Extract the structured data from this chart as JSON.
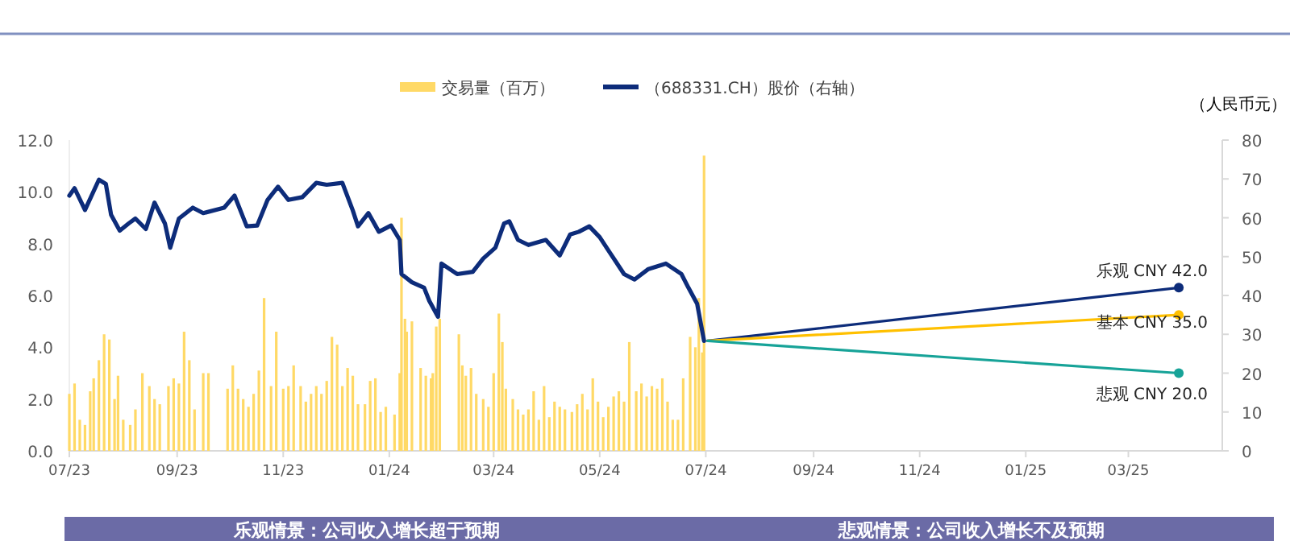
{
  "chart_data": {
    "type": "bar",
    "y2label": "（人民币元）",
    "legend": "top",
    "grid": false,
    "xlim": [
      "2023-07-01",
      "2025-04-24"
    ],
    "xticks": [
      {
        "value": "2023-07-01",
        "label": "07/23"
      },
      {
        "value": "2023-09-01",
        "label": "09/23"
      },
      {
        "value": "2023-11-01",
        "label": "11/23"
      },
      {
        "value": "2024-01-01",
        "label": "01/24"
      },
      {
        "value": "2024-03-01",
        "label": "03/24"
      },
      {
        "value": "2024-05-01",
        "label": "05/24"
      },
      {
        "value": "2024-07-01",
        "label": "07/24"
      },
      {
        "value": "2024-09-01",
        "label": "09/24"
      },
      {
        "value": "2024-11-01",
        "label": "11/24"
      },
      {
        "value": "2025-01-01",
        "label": "01/25"
      },
      {
        "value": "2025-03-01",
        "label": "03/25"
      }
    ],
    "ylim": [
      0,
      12
    ],
    "yticks": [
      {
        "value": 0,
        "label": "0.0"
      },
      {
        "value": 2,
        "label": "2.0"
      },
      {
        "value": 4,
        "label": "4.0"
      },
      {
        "value": 6,
        "label": "6.0"
      },
      {
        "value": 8,
        "label": "8.0"
      },
      {
        "value": 10,
        "label": "10.0"
      },
      {
        "value": 12,
        "label": "12.0"
      }
    ],
    "y2lim": [
      0,
      80
    ],
    "y2ticks": [
      0,
      10,
      20,
      30,
      40,
      50,
      60,
      70,
      80
    ],
    "annotations": [
      "乐观情景：公司收入增长超于预期",
      "悲观情景：公司收入增长不及预期"
    ],
    "series": [
      {
        "name": "交易量（百万）",
        "color": "#ffd966",
        "x": [
          "2023-07-01",
          "2023-07-04",
          "2023-07-07",
          "2023-07-10",
          "2023-07-13",
          "2023-07-15",
          "2023-07-18",
          "2023-07-21",
          "2023-07-24",
          "2023-07-27",
          "2023-07-29",
          "2023-08-01",
          "2023-08-05",
          "2023-08-08",
          "2023-08-12",
          "2023-08-16",
          "2023-08-19",
          "2023-08-22",
          "2023-08-27",
          "2023-08-30",
          "2023-09-02",
          "2023-09-05",
          "2023-09-08",
          "2023-09-11",
          "2023-09-16",
          "2023-09-19",
          "2023-09-30",
          "2023-10-03",
          "2023-10-06",
          "2023-10-09",
          "2023-10-12",
          "2023-10-15",
          "2023-10-18",
          "2023-10-21",
          "2023-10-25",
          "2023-10-28",
          "2023-11-01",
          "2023-11-04",
          "2023-11-07",
          "2023-11-11",
          "2023-11-14",
          "2023-11-17",
          "2023-11-20",
          "2023-11-23",
          "2023-11-26",
          "2023-11-29",
          "2023-12-02",
          "2023-12-05",
          "2023-12-08",
          "2023-12-11",
          "2023-12-14",
          "2023-12-18",
          "2023-12-21",
          "2023-12-24",
          "2023-12-27",
          "2023-12-30",
          "2024-01-04",
          "2024-01-07",
          "2024-01-08",
          "2024-01-10",
          "2024-01-11",
          "2024-01-14",
          "2024-01-19",
          "2024-01-22",
          "2024-01-25",
          "2024-01-26",
          "2024-01-28",
          "2024-01-30",
          "2024-02-10",
          "2024-02-12",
          "2024-02-14",
          "2024-02-17",
          "2024-02-20",
          "2024-02-24",
          "2024-02-27",
          "2024-03-01",
          "2024-03-04",
          "2024-03-06",
          "2024-03-08",
          "2024-03-12",
          "2024-03-15",
          "2024-03-18",
          "2024-03-21",
          "2024-03-24",
          "2024-03-27",
          "2024-03-30",
          "2024-04-02",
          "2024-04-05",
          "2024-04-08",
          "2024-04-11",
          "2024-04-15",
          "2024-04-18",
          "2024-04-21",
          "2024-04-24",
          "2024-04-27",
          "2024-04-30",
          "2024-05-03",
          "2024-05-06",
          "2024-05-09",
          "2024-05-12",
          "2024-05-15",
          "2024-05-18",
          "2024-05-22",
          "2024-05-25",
          "2024-05-28",
          "2024-05-31",
          "2024-06-03",
          "2024-06-06",
          "2024-06-09",
          "2024-06-12",
          "2024-06-15",
          "2024-06-18",
          "2024-06-22",
          "2024-06-25",
          "2024-06-27",
          "2024-06-29",
          "2024-06-30"
        ],
        "values": [
          2.2,
          2.6,
          1.2,
          1.0,
          2.3,
          2.8,
          3.5,
          4.5,
          4.3,
          2.0,
          2.9,
          1.2,
          1.0,
          1.6,
          3.0,
          2.5,
          2.0,
          1.8,
          2.5,
          2.8,
          2.6,
          4.6,
          3.5,
          1.6,
          3.0,
          3.0,
          2.4,
          3.3,
          2.4,
          2.0,
          1.7,
          2.2,
          3.1,
          5.9,
          2.5,
          4.6,
          2.4,
          2.5,
          3.3,
          2.5,
          1.9,
          2.2,
          2.5,
          2.2,
          2.7,
          4.4,
          4.1,
          2.5,
          3.2,
          2.9,
          1.8,
          1.8,
          2.7,
          2.8,
          1.5,
          1.7,
          1.4,
          3.0,
          9.0,
          5.1,
          4.6,
          5.0,
          3.2,
          2.9,
          2.8,
          3.0,
          4.8,
          5.1,
          4.5,
          3.3,
          2.9,
          3.2,
          2.2,
          2.0,
          1.7,
          3.0,
          5.3,
          4.2,
          2.4,
          2.0,
          1.6,
          1.4,
          1.6,
          2.3,
          1.2,
          2.5,
          1.3,
          1.9,
          1.7,
          1.6,
          1.5,
          1.8,
          2.2,
          1.6,
          2.8,
          1.9,
          1.3,
          1.7,
          2.1,
          2.3,
          1.9,
          4.2,
          2.3,
          2.6,
          2.1,
          2.5,
          2.4,
          2.8,
          1.9,
          1.2,
          1.2,
          2.8,
          4.4,
          4.0,
          5.9,
          3.8,
          11.4
        ]
      },
      {
        "name": "（688331.CH）股价（右轴）",
        "type": "line",
        "axis": "y2",
        "color": "#0d2c7a",
        "line_style": "solid",
        "x": [
          "2023-07-01",
          "2023-07-04",
          "2023-07-10",
          "2023-07-18",
          "2023-07-22",
          "2023-07-25",
          "2023-07-30",
          "2023-08-04",
          "2023-08-08",
          "2023-08-14",
          "2023-08-19",
          "2023-08-25",
          "2023-08-28",
          "2023-09-02",
          "2023-09-10",
          "2023-09-16",
          "2023-09-28",
          "2023-10-04",
          "2023-10-11",
          "2023-10-17",
          "2023-10-23",
          "2023-10-29",
          "2023-11-04",
          "2023-11-12",
          "2023-11-20",
          "2023-11-26",
          "2023-12-05",
          "2023-12-11",
          "2023-12-14",
          "2023-12-20",
          "2023-12-26",
          "2024-01-02",
          "2024-01-07",
          "2024-01-08",
          "2024-01-14",
          "2024-01-21",
          "2024-01-24",
          "2024-01-29",
          "2024-01-31",
          "2024-02-09",
          "2024-02-18",
          "2024-02-24",
          "2024-03-02",
          "2024-03-07",
          "2024-03-10",
          "2024-03-15",
          "2024-03-21",
          "2024-03-31",
          "2024-04-08",
          "2024-04-14",
          "2024-04-19",
          "2024-04-25",
          "2024-05-01",
          "2024-05-07",
          "2024-05-15",
          "2024-05-21",
          "2024-05-29",
          "2024-06-08",
          "2024-06-17",
          "2024-06-21",
          "2024-06-26",
          "2024-06-30"
        ],
        "values": [
          65.7,
          67.6,
          62.0,
          69.8,
          68.7,
          60.8,
          56.7,
          58.5,
          59.8,
          57.1,
          63.9,
          58.5,
          52.3,
          59.8,
          62.6,
          61.2,
          62.6,
          65.7,
          57.8,
          58.0,
          64.6,
          68.0,
          64.6,
          65.3,
          69.0,
          68.5,
          69.0,
          61.9,
          57.8,
          61.2,
          56.4,
          58.0,
          54.3,
          45.5,
          43.4,
          42.0,
          38.6,
          34.5,
          48.2,
          45.5,
          46.1,
          49.5,
          52.3,
          58.5,
          59.1,
          54.3,
          53.0,
          54.3,
          50.3,
          55.7,
          56.4,
          57.8,
          55.0,
          50.9,
          45.5,
          44.1,
          46.8,
          48.2,
          45.5,
          42.0,
          37.9,
          28.3
        ]
      },
      {
        "type": "line",
        "axis": "y2",
        "color": "#0d2c7a",
        "marker": "circle",
        "x": [
          "2024-07-02",
          "2025-03-30"
        ],
        "values": [
          28.3,
          42.0
        ],
        "value_labels": [
          null,
          "乐观 CNY 42.0"
        ]
      },
      {
        "type": "line",
        "axis": "y2",
        "color": "#ffc000",
        "marker": "circle",
        "x": [
          "2024-07-02",
          "2025-03-30"
        ],
        "values": [
          28.3,
          35.0
        ],
        "value_labels": [
          null,
          "基本 CNY 35.0"
        ]
      },
      {
        "type": "line",
        "axis": "y2",
        "color": "#17a398",
        "marker": "circle",
        "x": [
          "2024-07-02",
          "2025-03-30"
        ],
        "values": [
          28.3,
          20.0
        ],
        "value_labels": [
          null,
          "悲观 CNY 20.0"
        ]
      }
    ]
  }
}
